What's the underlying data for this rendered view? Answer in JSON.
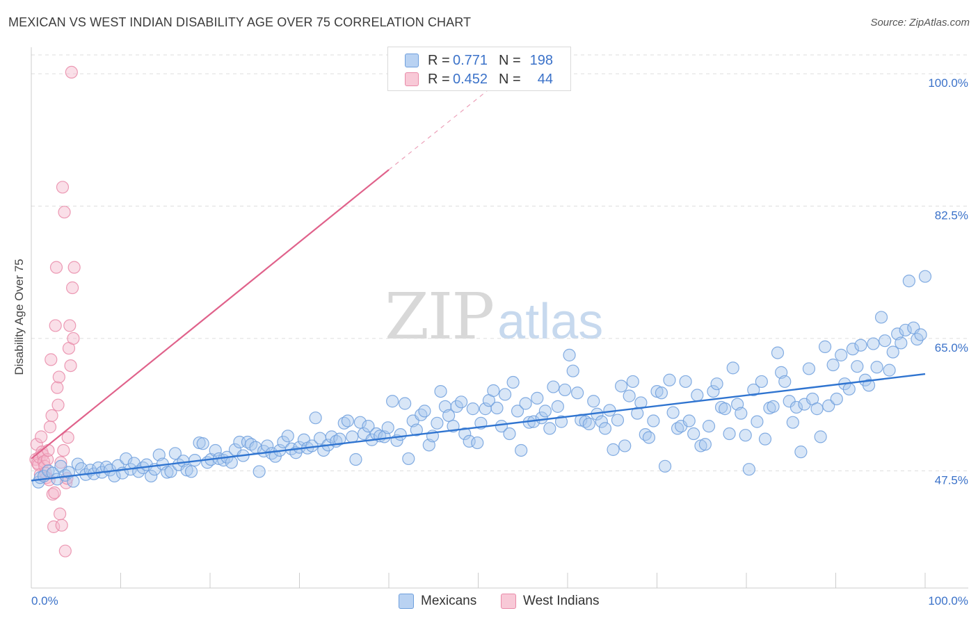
{
  "title": "MEXICAN VS WEST INDIAN DISABILITY AGE OVER 75 CORRELATION CHART",
  "source": "Source: ZipAtlas.com",
  "watermark": {
    "zip": "ZIP",
    "atlas": "atlas"
  },
  "legend": {
    "mexicans": {
      "r_label": "R =",
      "r_value": "0.771",
      "n_label": "N =",
      "n_value": "198"
    },
    "west_indians": {
      "r_label": "R =",
      "r_value": "0.452",
      "n_label": "N =",
      "n_value": "44"
    }
  },
  "bottom_legend": {
    "mexicans": "Mexicans",
    "west_indians": "West Indians"
  },
  "colors": {
    "mexicans_fill": "#a9c7ee",
    "mexicans_stroke": "#6e9fdd",
    "mexicans_line": "#2f74d0",
    "west_fill": "#f5b9cb",
    "west_stroke": "#e98aa8",
    "west_line": "#e0628b",
    "tick_label": "#3b72c9",
    "grid": "#dddddd"
  },
  "chart_data": {
    "type": "scatter",
    "title": "MEXICAN VS WEST INDIAN DISABILITY AGE OVER 75 CORRELATION CHART",
    "xlabel": "",
    "ylabel": "Disability Age Over 75",
    "xlim": [
      0,
      100
    ],
    "ylim": [
      32,
      103.5
    ],
    "x_tick_labels": [
      "0.0%",
      "100.0%"
    ],
    "y_ticks": [
      47.5,
      65.0,
      82.5,
      100.0
    ],
    "y_tick_labels": [
      "47.5%",
      "65.0%",
      "82.5%",
      "100.0%"
    ],
    "grid": true,
    "series": [
      {
        "name": "Mexicans",
        "r": 0.771,
        "n": 198,
        "trend": {
          "x": [
            0,
            100
          ],
          "y": [
            46.2,
            60.3
          ],
          "style": "solid"
        },
        "points": [
          [
            0.8,
            46.0
          ],
          [
            1.0,
            46.6
          ],
          [
            1.4,
            46.8
          ],
          [
            1.9,
            47.5
          ],
          [
            2.4,
            47.2
          ],
          [
            2.9,
            46.4
          ],
          [
            3.3,
            48.1
          ],
          [
            3.8,
            46.9
          ],
          [
            4.2,
            47.3
          ],
          [
            4.7,
            46.1
          ],
          [
            5.2,
            48.4
          ],
          [
            5.6,
            47.8
          ],
          [
            6.1,
            47.0
          ],
          [
            6.6,
            47.6
          ],
          [
            7.0,
            47.1
          ],
          [
            7.5,
            47.9
          ],
          [
            7.9,
            47.3
          ],
          [
            8.4,
            48.0
          ],
          [
            8.8,
            47.6
          ],
          [
            9.3,
            46.8
          ],
          [
            9.7,
            48.2
          ],
          [
            10.2,
            47.2
          ],
          [
            10.6,
            49.1
          ],
          [
            11.1,
            47.7
          ],
          [
            11.5,
            48.5
          ],
          [
            12.0,
            47.4
          ],
          [
            12.5,
            47.9
          ],
          [
            12.9,
            48.3
          ],
          [
            13.4,
            46.8
          ],
          [
            13.8,
            47.7
          ],
          [
            14.3,
            49.6
          ],
          [
            14.7,
            48.4
          ],
          [
            15.2,
            47.3
          ],
          [
            15.6,
            47.4
          ],
          [
            16.1,
            49.8
          ],
          [
            16.5,
            48.3
          ],
          [
            17.0,
            48.8
          ],
          [
            17.4,
            47.6
          ],
          [
            17.9,
            47.4
          ],
          [
            18.3,
            48.9
          ],
          [
            18.8,
            51.2
          ],
          [
            19.2,
            51.1
          ],
          [
            19.7,
            48.6
          ],
          [
            20.1,
            49.0
          ],
          [
            20.6,
            50.2
          ],
          [
            21.0,
            49.1
          ],
          [
            21.5,
            48.9
          ],
          [
            21.9,
            49.3
          ],
          [
            22.4,
            48.6
          ],
          [
            22.8,
            50.3
          ],
          [
            23.3,
            51.3
          ],
          [
            23.7,
            49.5
          ],
          [
            24.2,
            51.3
          ],
          [
            24.6,
            51.0
          ],
          [
            25.1,
            50.6
          ],
          [
            25.5,
            47.4
          ],
          [
            26.0,
            50.1
          ],
          [
            26.4,
            50.8
          ],
          [
            26.9,
            49.8
          ],
          [
            27.3,
            49.4
          ],
          [
            27.8,
            50.2
          ],
          [
            28.2,
            51.3
          ],
          [
            28.7,
            52.1
          ],
          [
            29.1,
            50.4
          ],
          [
            29.6,
            49.9
          ],
          [
            30.0,
            50.6
          ],
          [
            30.5,
            51.6
          ],
          [
            30.9,
            50.5
          ],
          [
            31.4,
            50.8
          ],
          [
            31.8,
            54.5
          ],
          [
            32.3,
            51.8
          ],
          [
            32.7,
            50.2
          ],
          [
            33.2,
            50.9
          ],
          [
            33.6,
            52.0
          ],
          [
            34.1,
            51.4
          ],
          [
            34.5,
            51.7
          ],
          [
            35.0,
            53.8
          ],
          [
            35.4,
            54.1
          ],
          [
            35.9,
            52.0
          ],
          [
            36.3,
            49.0
          ],
          [
            36.8,
            53.9
          ],
          [
            37.2,
            52.4
          ],
          [
            37.7,
            53.4
          ],
          [
            38.1,
            51.6
          ],
          [
            38.6,
            52.4
          ],
          [
            39.0,
            52.1
          ],
          [
            39.5,
            52.0
          ],
          [
            39.9,
            53.2
          ],
          [
            40.4,
            56.7
          ],
          [
            40.9,
            51.5
          ],
          [
            41.3,
            52.3
          ],
          [
            41.8,
            56.4
          ],
          [
            42.2,
            49.1
          ],
          [
            42.7,
            54.1
          ],
          [
            43.1,
            52.9
          ],
          [
            43.6,
            54.9
          ],
          [
            44.0,
            55.4
          ],
          [
            44.5,
            50.9
          ],
          [
            44.9,
            52.1
          ],
          [
            45.4,
            53.8
          ],
          [
            45.8,
            58.0
          ],
          [
            46.3,
            56.0
          ],
          [
            46.7,
            54.8
          ],
          [
            47.2,
            53.4
          ],
          [
            47.6,
            56.0
          ],
          [
            48.1,
            56.6
          ],
          [
            48.5,
            52.4
          ],
          [
            49.0,
            51.4
          ],
          [
            49.4,
            55.7
          ],
          [
            49.9,
            51.2
          ],
          [
            50.3,
            53.8
          ],
          [
            50.8,
            55.7
          ],
          [
            51.2,
            56.8
          ],
          [
            51.7,
            58.1
          ],
          [
            52.1,
            55.8
          ],
          [
            52.6,
            53.4
          ],
          [
            53.0,
            57.6
          ],
          [
            53.5,
            52.4
          ],
          [
            53.9,
            59.2
          ],
          [
            54.4,
            55.4
          ],
          [
            54.8,
            50.2
          ],
          [
            55.3,
            56.4
          ],
          [
            55.7,
            53.9
          ],
          [
            56.2,
            54.0
          ],
          [
            56.6,
            57.1
          ],
          [
            57.1,
            54.5
          ],
          [
            57.5,
            55.4
          ],
          [
            58.0,
            53.1
          ],
          [
            58.4,
            58.6
          ],
          [
            58.9,
            56.0
          ],
          [
            59.3,
            54.0
          ],
          [
            59.7,
            58.2
          ],
          [
            60.2,
            62.8
          ],
          [
            60.6,
            60.7
          ],
          [
            61.1,
            57.8
          ],
          [
            61.5,
            54.2
          ],
          [
            62.0,
            54.0
          ],
          [
            62.4,
            53.7
          ],
          [
            62.9,
            56.7
          ],
          [
            63.3,
            55.0
          ],
          [
            63.8,
            54.0
          ],
          [
            64.2,
            53.1
          ],
          [
            64.7,
            55.5
          ],
          [
            65.1,
            50.3
          ],
          [
            65.6,
            54.2
          ],
          [
            66.0,
            58.7
          ],
          [
            66.4,
            50.8
          ],
          [
            66.9,
            57.4
          ],
          [
            67.3,
            59.3
          ],
          [
            67.8,
            55.1
          ],
          [
            68.2,
            56.5
          ],
          [
            68.7,
            52.3
          ],
          [
            69.1,
            51.9
          ],
          [
            69.6,
            54.1
          ],
          [
            70.0,
            58.0
          ],
          [
            70.5,
            57.8
          ],
          [
            70.9,
            48.1
          ],
          [
            71.4,
            59.5
          ],
          [
            71.8,
            55.2
          ],
          [
            72.3,
            53.1
          ],
          [
            72.7,
            53.4
          ],
          [
            73.2,
            59.3
          ],
          [
            73.6,
            54.1
          ],
          [
            74.1,
            52.4
          ],
          [
            74.5,
            57.5
          ],
          [
            74.9,
            50.8
          ],
          [
            75.4,
            51.0
          ],
          [
            75.8,
            53.4
          ],
          [
            76.3,
            58.0
          ],
          [
            76.7,
            59.0
          ],
          [
            77.2,
            55.9
          ],
          [
            77.6,
            55.7
          ],
          [
            78.1,
            52.4
          ],
          [
            78.5,
            61.1
          ],
          [
            79.0,
            56.3
          ],
          [
            79.4,
            55.1
          ],
          [
            79.9,
            52.2
          ],
          [
            80.3,
            47.7
          ],
          [
            80.8,
            58.2
          ],
          [
            81.2,
            54.0
          ],
          [
            81.7,
            59.3
          ],
          [
            82.1,
            51.7
          ],
          [
            82.6,
            55.8
          ],
          [
            83.0,
            56.0
          ],
          [
            83.5,
            63.1
          ],
          [
            83.9,
            60.5
          ],
          [
            84.3,
            59.3
          ],
          [
            84.8,
            56.7
          ],
          [
            85.2,
            53.9
          ],
          [
            85.6,
            55.9
          ],
          [
            86.1,
            50.0
          ],
          [
            86.5,
            56.3
          ],
          [
            87.0,
            61.0
          ],
          [
            87.4,
            57.0
          ],
          [
            87.9,
            55.7
          ],
          [
            88.3,
            52.0
          ],
          [
            88.8,
            63.9
          ],
          [
            89.2,
            56.1
          ],
          [
            89.7,
            61.5
          ],
          [
            90.1,
            57.0
          ],
          [
            90.6,
            62.8
          ],
          [
            91.0,
            59.0
          ],
          [
            91.5,
            58.3
          ],
          [
            91.9,
            63.6
          ],
          [
            92.4,
            61.3
          ],
          [
            92.8,
            64.1
          ],
          [
            93.3,
            59.5
          ],
          [
            93.7,
            58.8
          ],
          [
            94.2,
            64.3
          ],
          [
            94.6,
            61.2
          ],
          [
            95.1,
            67.8
          ],
          [
            95.5,
            64.7
          ],
          [
            96.0,
            60.8
          ],
          [
            96.4,
            63.2
          ],
          [
            96.9,
            65.6
          ],
          [
            97.3,
            64.4
          ],
          [
            97.8,
            66.1
          ],
          [
            98.2,
            72.6
          ],
          [
            98.7,
            66.4
          ],
          [
            99.1,
            64.9
          ],
          [
            99.5,
            65.5
          ],
          [
            100.0,
            73.2
          ]
        ]
      },
      {
        "name": "West Indians",
        "r": 0.452,
        "n": 44,
        "trend": {
          "x": [
            0,
            40
          ],
          "y": [
            49.1,
            87.3
          ],
          "style": "solid",
          "extension": {
            "x": [
              40,
              54
            ],
            "y": [
              87.3,
              100.6
            ],
            "style": "dashed"
          }
        },
        "points": [
          [
            0.5,
            49.0
          ],
          [
            0.6,
            51.0
          ],
          [
            0.7,
            48.5
          ],
          [
            0.8,
            48.3
          ],
          [
            0.9,
            49.3
          ],
          [
            1.0,
            47.0
          ],
          [
            1.1,
            52.0
          ],
          [
            1.2,
            50.0
          ],
          [
            1.3,
            49.6
          ],
          [
            1.4,
            48.7
          ],
          [
            1.5,
            48.1
          ],
          [
            1.6,
            47.2
          ],
          [
            1.7,
            46.6
          ],
          [
            1.8,
            49.0
          ],
          [
            1.9,
            50.2
          ],
          [
            2.0,
            46.3
          ],
          [
            2.1,
            53.3
          ],
          [
            2.2,
            62.2
          ],
          [
            2.3,
            54.8
          ],
          [
            2.4,
            44.4
          ],
          [
            2.5,
            40.1
          ],
          [
            2.6,
            44.6
          ],
          [
            2.7,
            66.7
          ],
          [
            2.8,
            74.4
          ],
          [
            2.9,
            58.5
          ],
          [
            3.0,
            56.2
          ],
          [
            3.1,
            59.9
          ],
          [
            3.2,
            41.8
          ],
          [
            3.3,
            48.6
          ],
          [
            3.4,
            40.3
          ],
          [
            3.5,
            85.0
          ],
          [
            3.6,
            50.2
          ],
          [
            3.7,
            81.7
          ],
          [
            3.8,
            36.9
          ],
          [
            3.9,
            45.9
          ],
          [
            4.0,
            46.5
          ],
          [
            4.1,
            51.9
          ],
          [
            4.2,
            63.7
          ],
          [
            4.3,
            66.7
          ],
          [
            4.4,
            61.4
          ],
          [
            4.5,
            100.2
          ],
          [
            4.6,
            71.7
          ],
          [
            4.7,
            65.0
          ],
          [
            4.8,
            74.4
          ]
        ]
      }
    ]
  }
}
